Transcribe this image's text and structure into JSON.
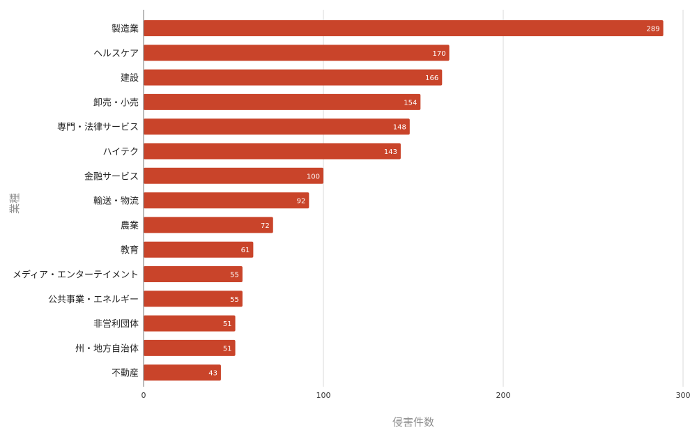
{
  "chart_data": {
    "type": "bar",
    "orientation": "horizontal",
    "categories": [
      "製造業",
      "ヘルスケア",
      "建設",
      "卸売・小売",
      "専門・法律サービス",
      "ハイテク",
      "金融サービス",
      "輸送・物流",
      "農業",
      "教育",
      "メディア・エンターテイメント",
      "公共事業・エネルギー",
      "非営利団体",
      "州・地方自治体",
      "不動産"
    ],
    "values": [
      289,
      170,
      166,
      154,
      148,
      143,
      100,
      92,
      72,
      61,
      55,
      55,
      51,
      51,
      43
    ],
    "xlabel": "侵害件数",
    "ylabel": "業種",
    "xlim": [
      0,
      300
    ],
    "xticks": [
      0,
      100,
      200,
      300
    ],
    "grid": true,
    "bar_color": "#c9442a",
    "grid_color": "#d9d9d9",
    "axis_color": "#777777",
    "data_labels": true
  }
}
